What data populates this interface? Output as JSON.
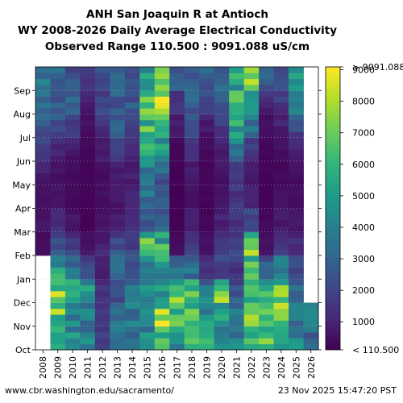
{
  "header": {
    "line1": "ANH San Joaquin R at Antioch",
    "line2": "WY 2008-2026 Daily Average Electrical Conductivity",
    "line3": "Observed Range 110.500 : 9091.088 uS/cm"
  },
  "footer": {
    "source_url": "www.cbr.washington.edu/sacramento/",
    "generated": "23 Nov 2025 15:47:20 PST"
  },
  "colors": {
    "palette": [
      "#440154",
      "#482878",
      "#3e4989",
      "#31688e",
      "#26828e",
      "#1f9e89",
      "#35b779",
      "#6ece58",
      "#b5de2b",
      "#fde725"
    ],
    "missing": "#ffffff"
  },
  "chart_data": {
    "type": "heatmap",
    "title": "ANH San Joaquin R at Antioch",
    "x_categories": [
      "2008",
      "2009",
      "2010",
      "2011",
      "2012",
      "2013",
      "2014",
      "2015",
      "2016",
      "2017",
      "2018",
      "2019",
      "2020",
      "2021",
      "2022",
      "2023",
      "2024",
      "2025",
      "2026"
    ],
    "y_month_ticks": [
      "Oct",
      "Nov",
      "Dec",
      "Jan",
      "Feb",
      "Mar",
      "Apr",
      "May",
      "Jun",
      "Jul",
      "Aug",
      "Sep"
    ],
    "colorbar": {
      "ticks": [
        "< 110.500",
        "1000",
        "2000",
        "3000",
        "4000",
        "5000",
        "6000",
        "7000",
        "8000",
        "9000",
        "> 9091.088"
      ],
      "range": [
        110.5,
        9091.088
      ],
      "colormap": "viridis"
    },
    "legend_position": "right",
    "monthly_ec_estimates": {
      "note_months": [
        "Oct",
        "Nov",
        "Dec",
        "Jan",
        "Feb",
        "Mar",
        "Apr",
        "May",
        "Jun",
        "Jul",
        "Aug",
        "Sep"
      ],
      "2008": [
        null,
        null,
        null,
        null,
        400,
        600,
        500,
        600,
        1500,
        2600,
        3500,
        4000
      ],
      "2009": [
        5500,
        6800,
        7000,
        5000,
        2400,
        1200,
        600,
        500,
        900,
        2200,
        2500,
        3000
      ],
      "2010": [
        4500,
        4200,
        5200,
        3800,
        1800,
        700,
        300,
        300,
        500,
        1500,
        2800,
        2500
      ],
      "2011": [
        4000,
        3500,
        5500,
        2500,
        600,
        200,
        200,
        200,
        200,
        400,
        800,
        1500
      ],
      "2012": [
        1500,
        2000,
        1500,
        800,
        1000,
        700,
        500,
        400,
        700,
        1200,
        1800,
        2200
      ],
      "2013": [
        3000,
        3500,
        2000,
        3500,
        2500,
        800,
        700,
        800,
        1500,
        2500,
        2600,
        3000
      ],
      "2014": [
        3500,
        3600,
        4000,
        3000,
        2000,
        1500,
        1200,
        800,
        900,
        1500,
        2500,
        2200
      ],
      "2015": [
        4500,
        4000,
        4000,
        3800,
        7500,
        2500,
        3500,
        3500,
        5000,
        6000,
        6500,
        4500
      ],
      "2016": [
        6500,
        7500,
        5500,
        4500,
        6000,
        3000,
        2500,
        2500,
        4200,
        6500,
        7500,
        8800
      ],
      "2017": [
        5000,
        6000,
        7000,
        4500,
        400,
        200,
        150,
        150,
        200,
        600,
        1200,
        2500
      ],
      "2018": [
        5500,
        5800,
        6500,
        3500,
        2000,
        800,
        600,
        600,
        1200,
        2200,
        2600,
        2800
      ],
      "2019": [
        5500,
        4500,
        4000,
        1800,
        500,
        300,
        200,
        200,
        300,
        600,
        1500,
        2700
      ],
      "2020": [
        5000,
        4500,
        7000,
        2000,
        1800,
        1000,
        600,
        500,
        800,
        1400,
        2200,
        2800
      ],
      "2021": [
        4000,
        3800,
        2500,
        1500,
        1800,
        1500,
        1500,
        1500,
        3500,
        5000,
        6500,
        5000
      ],
      "2022": [
        6000,
        7000,
        5500,
        5500,
        6500,
        2500,
        1000,
        800,
        1200,
        3200,
        4500,
        6500
      ],
      "2023": [
        6000,
        6500,
        6200,
        3500,
        600,
        300,
        200,
        200,
        200,
        400,
        800,
        2500
      ],
      "2024": [
        5500,
        6000,
        7500,
        4500,
        1800,
        800,
        500,
        300,
        400,
        800,
        1400,
        2000
      ],
      "2025": [
        4000,
        3800,
        3500,
        2000,
        1500,
        700,
        400,
        400,
        700,
        1800,
        3500,
        4500
      ],
      "2026": [
        3000,
        3500,
        null,
        null,
        null,
        null,
        null,
        null,
        null,
        null,
        null,
        null
      ]
    }
  }
}
